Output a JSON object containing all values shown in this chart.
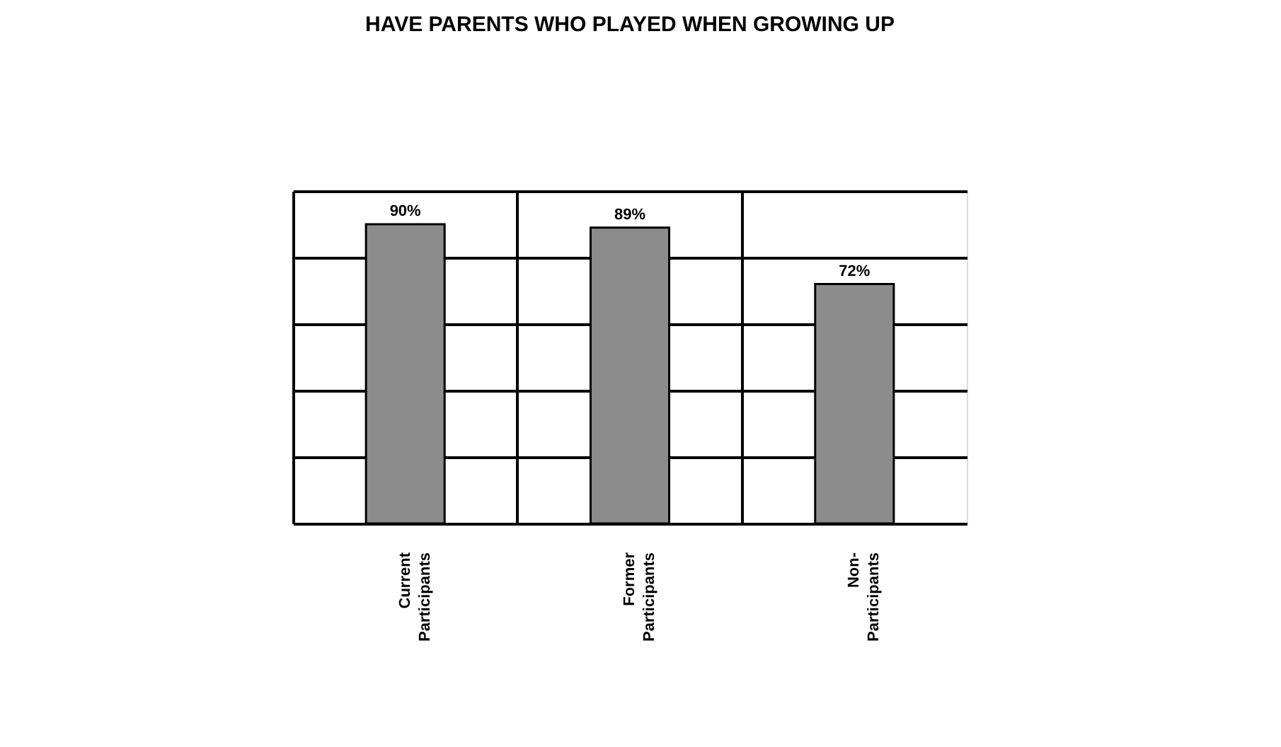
{
  "chart_data": {
    "type": "bar",
    "title": "HAVE PARENTS WHO PLAYED WHEN GROWING UP",
    "categories": [
      "Current Participants",
      "Former Participants",
      "Non-Participants"
    ],
    "values": [
      90,
      89,
      72
    ],
    "value_labels": [
      "90%",
      "89%",
      "72%"
    ],
    "color": "#8c8c8c",
    "ylim": [
      0,
      100
    ],
    "yticks": [
      0,
      20,
      40,
      60,
      80,
      100
    ],
    "tick_labels": "x",
    "grid": true
  }
}
